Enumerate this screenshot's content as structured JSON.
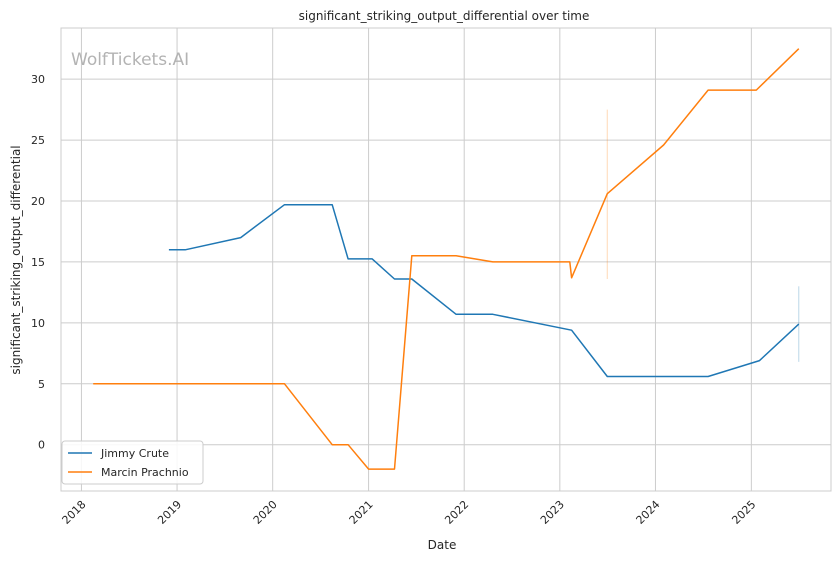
{
  "chart_data": {
    "type": "line",
    "title": "significant_striking_output_differential over time",
    "xlabel": "Date",
    "ylabel": "significant_striking_output_differential",
    "watermark": "WolfTickets.AI",
    "xlim": [
      "2017-10-15",
      "2025-11-01"
    ],
    "ylim": [
      -3.8,
      34.2
    ],
    "xticks": [
      "2018",
      "2019",
      "2020",
      "2021",
      "2022",
      "2023",
      "2024",
      "2025"
    ],
    "yticks": [
      0,
      5,
      10,
      15,
      20,
      25,
      30
    ],
    "grid": true,
    "legend_position": "lower-left",
    "series": [
      {
        "name": "Jimmy Crute",
        "color": "#1f77b4",
        "points": [
          [
            "2018-12-01",
            16.0
          ],
          [
            "2019-02-01",
            16.0
          ],
          [
            "2019-09-01",
            17.0
          ],
          [
            "2020-02-15",
            19.7
          ],
          [
            "2020-08-15",
            19.7
          ],
          [
            "2020-10-15",
            15.25
          ],
          [
            "2021-01-15",
            15.25
          ],
          [
            "2021-04-10",
            13.6
          ],
          [
            "2021-06-15",
            13.6
          ],
          [
            "2021-12-01",
            10.7
          ],
          [
            "2022-04-20",
            10.7
          ],
          [
            "2023-02-15",
            9.4
          ],
          [
            "2023-07-01",
            5.6
          ],
          [
            "2024-07-20",
            5.6
          ],
          [
            "2025-02-01",
            6.9
          ],
          [
            "2025-07-01",
            9.9
          ]
        ],
        "error_bars": [
          [
            "2025-07-01",
            6.8,
            13.0
          ]
        ]
      },
      {
        "name": "Marcin Prachnio",
        "color": "#ff7f0e",
        "points": [
          [
            "2018-02-15",
            5.0
          ],
          [
            "2020-02-15",
            5.0
          ],
          [
            "2020-08-15",
            0.0
          ],
          [
            "2020-10-15",
            0.0
          ],
          [
            "2021-01-01",
            -2.0
          ],
          [
            "2021-04-10",
            -2.0
          ],
          [
            "2021-06-15",
            15.5
          ],
          [
            "2021-12-01",
            15.5
          ],
          [
            "2022-04-20",
            15.0
          ],
          [
            "2023-02-08",
            15.0
          ],
          [
            "2023-02-15",
            13.7
          ],
          [
            "2023-07-01",
            20.6
          ],
          [
            "2024-02-01",
            24.6
          ],
          [
            "2024-07-20",
            29.1
          ],
          [
            "2025-01-20",
            29.1
          ],
          [
            "2025-07-01",
            32.5
          ]
        ],
        "error_bars": [
          [
            "2023-07-01",
            13.6,
            27.5
          ]
        ]
      }
    ]
  }
}
